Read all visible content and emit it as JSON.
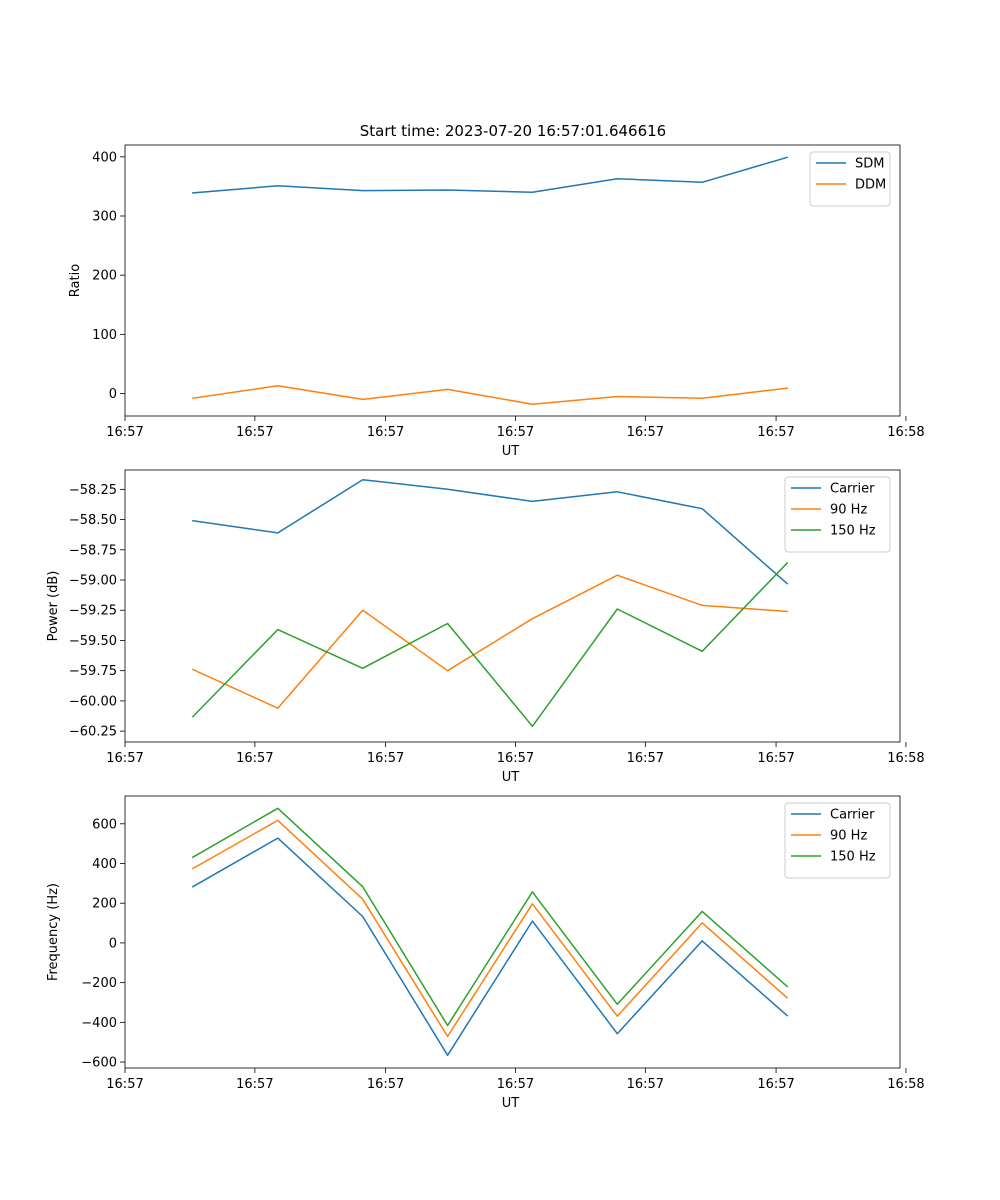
{
  "figure_title": "Start time: 2023-07-20 16:57:01.646616",
  "chart_data": [
    {
      "type": "line",
      "title": "Start time: 2023-07-20 16:57:01.646616",
      "xlabel": "UT",
      "ylabel": "Ratio",
      "x": [
        1,
        2,
        3,
        4,
        5,
        6,
        7,
        8
      ],
      "xlim": [
        0.2,
        9.33
      ],
      "xticks": [
        0.2,
        1.73,
        3.27,
        4.8,
        6.33,
        7.87,
        9.4
      ],
      "xticklabels": [
        "16:57",
        "16:57",
        "16:57",
        "16:57",
        "16:57",
        "16:57",
        "16:58"
      ],
      "ylim": [
        -38,
        420
      ],
      "yticks": [
        0,
        100,
        200,
        300,
        400
      ],
      "yticklabels": [
        "0",
        "100",
        "200",
        "300",
        "400"
      ],
      "legend_position": "top-right",
      "series": [
        {
          "name": "SDM",
          "color": "#1f77b4",
          "values": [
            339,
            351,
            343,
            344,
            340,
            363,
            357,
            399
          ]
        },
        {
          "name": "DDM",
          "color": "#ff7f0e",
          "values": [
            -8,
            13,
            -10,
            7,
            -18,
            -5,
            -8,
            9
          ]
        }
      ]
    },
    {
      "type": "line",
      "title": "",
      "xlabel": "UT",
      "ylabel": "Power (dB)",
      "x": [
        1,
        2,
        3,
        4,
        5,
        6,
        7,
        8
      ],
      "xlim": [
        0.2,
        9.33
      ],
      "xticks": [
        0.2,
        1.73,
        3.27,
        4.8,
        6.33,
        7.87,
        9.4
      ],
      "xticklabels": [
        "16:57",
        "16:57",
        "16:57",
        "16:57",
        "16:57",
        "16:57",
        "16:58"
      ],
      "ylim": [
        -60.34,
        -58.09
      ],
      "yticks": [
        -58.25,
        -58.5,
        -58.75,
        -59.0,
        -59.25,
        -59.5,
        -59.75,
        -60.0,
        -60.25
      ],
      "yticklabels": [
        "−58.25",
        "−58.50",
        "−58.75",
        "−59.00",
        "−59.25",
        "−59.50",
        "−59.75",
        "−60.00",
        "−60.25"
      ],
      "legend_position": "top-right",
      "series": [
        {
          "name": "Carrier",
          "color": "#1f77b4",
          "values": [
            -58.51,
            -58.61,
            -58.17,
            -58.25,
            -58.35,
            -58.27,
            -58.41,
            -59.03
          ]
        },
        {
          "name": "90 Hz",
          "color": "#ff7f0e",
          "values": [
            -59.74,
            -60.06,
            -59.25,
            -59.75,
            -59.32,
            -58.96,
            -59.21,
            -59.26
          ]
        },
        {
          "name": "150 Hz",
          "color": "#2ca02c",
          "values": [
            -60.13,
            -59.41,
            -59.73,
            -59.36,
            -60.21,
            -59.24,
            -59.59,
            -58.86
          ]
        }
      ]
    },
    {
      "type": "line",
      "title": "",
      "xlabel": "UT",
      "ylabel": "Frequency (Hz)",
      "x": [
        1,
        2,
        3,
        4,
        5,
        6,
        7,
        8
      ],
      "xlim": [
        0.2,
        9.33
      ],
      "xticks": [
        0.2,
        1.73,
        3.27,
        4.8,
        6.33,
        7.87,
        9.4
      ],
      "xticklabels": [
        "16:57",
        "16:57",
        "16:57",
        "16:57",
        "16:57",
        "16:57",
        "16:58"
      ],
      "ylim": [
        -630,
        740
      ],
      "yticks": [
        600,
        400,
        200,
        0,
        -200,
        -400,
        -600
      ],
      "yticklabels": [
        "600",
        "400",
        "200",
        "0",
        "−200",
        "−400",
        "−600"
      ],
      "legend_position": "top-right",
      "series": [
        {
          "name": "Carrier",
          "color": "#1f77b4",
          "values": [
            283,
            528,
            133,
            -566,
            110,
            -457,
            10,
            -366
          ]
        },
        {
          "name": "90 Hz",
          "color": "#ff7f0e",
          "values": [
            375,
            617,
            220,
            -471,
            197,
            -369,
            101,
            -276
          ]
        },
        {
          "name": "150 Hz",
          "color": "#2ca02c",
          "values": [
            432,
            678,
            283,
            -416,
            257,
            -309,
            159,
            -219
          ]
        }
      ]
    }
  ]
}
